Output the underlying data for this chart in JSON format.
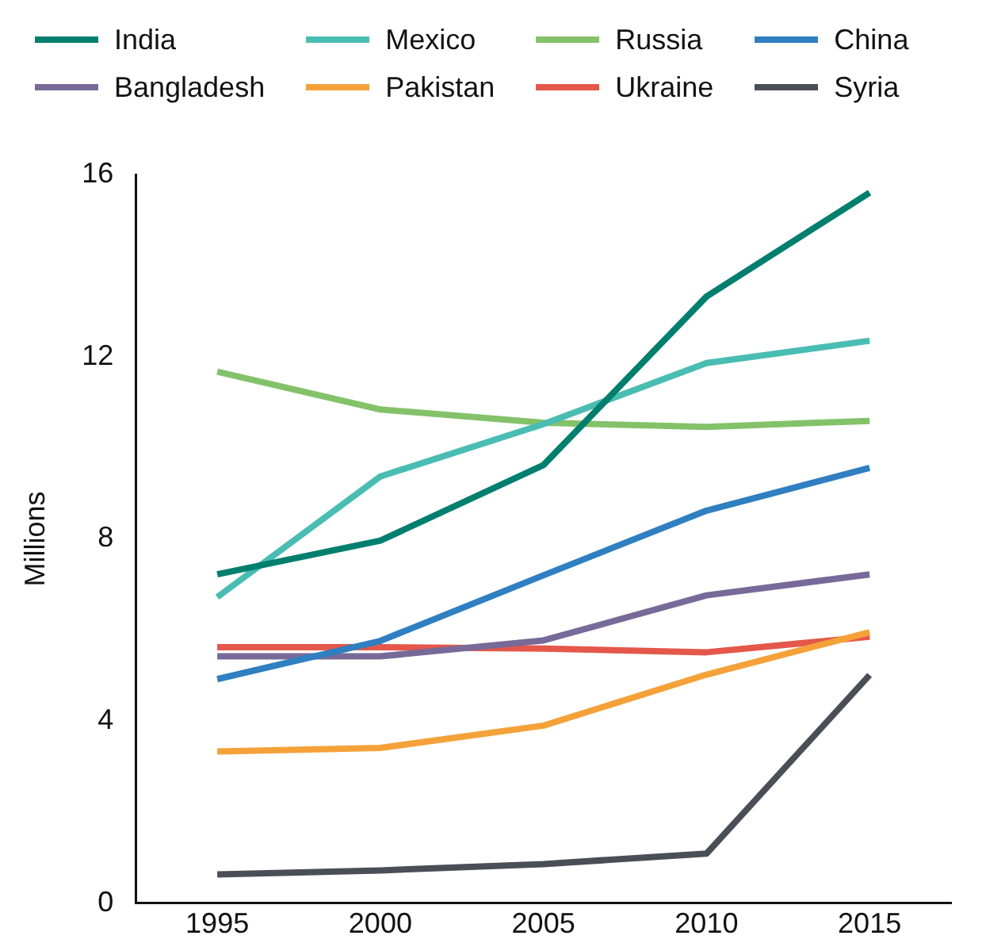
{
  "chart_data": {
    "type": "line",
    "ylabel": "Millions",
    "x": [
      1995,
      2000,
      2005,
      2010,
      2015
    ],
    "xlim": [
      1992.5,
      2017.5
    ],
    "xticks": [
      1995,
      2000,
      2005,
      2010,
      2015
    ],
    "ylim": [
      0,
      16
    ],
    "yticks": [
      0,
      4,
      8,
      12,
      16
    ],
    "grid": false,
    "legend": "top",
    "marker": "none",
    "line_style": "solid",
    "series": [
      {
        "name": "India",
        "color": "#007f6e",
        "values": [
          7.22,
          7.96,
          9.62,
          13.32,
          15.6
        ]
      },
      {
        "name": "Mexico",
        "color": "#4abdb3",
        "values": [
          6.72,
          9.37,
          10.52,
          11.86,
          12.35
        ]
      },
      {
        "name": "Russia",
        "color": "#84c26a",
        "values": [
          11.67,
          10.84,
          10.55,
          10.46,
          10.59
        ]
      },
      {
        "name": "China",
        "color": "#2f7fc1",
        "values": [
          4.92,
          5.76,
          7.2,
          8.62,
          9.56
        ]
      },
      {
        "name": "Bangladesh",
        "color": "#786a98",
        "values": [
          5.42,
          5.42,
          5.77,
          6.76,
          7.22
        ]
      },
      {
        "name": "Pakistan",
        "color": "#f5a13a",
        "values": [
          3.33,
          3.41,
          3.9,
          5.02,
          5.95
        ]
      },
      {
        "name": "Ukraine",
        "color": "#e4574a",
        "values": [
          5.62,
          5.62,
          5.59,
          5.51,
          5.85
        ]
      },
      {
        "name": "Syria",
        "color": "#4a4f57",
        "values": [
          0.63,
          0.72,
          0.86,
          1.09,
          5.01
        ]
      }
    ]
  }
}
